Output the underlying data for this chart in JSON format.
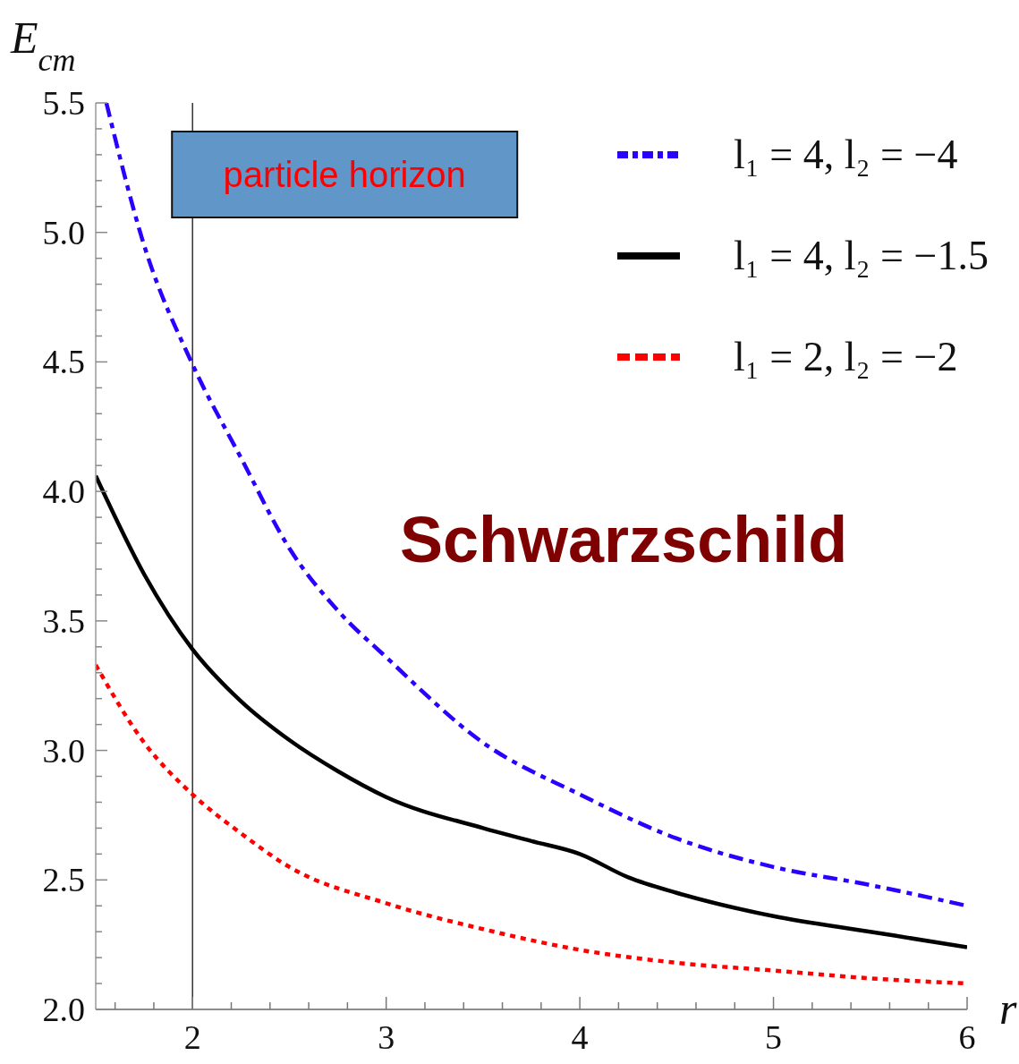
{
  "chart_data": {
    "type": "line",
    "xlabel": "r",
    "ylabel": "E$_{cm}$",
    "xlim": [
      1.5,
      6
    ],
    "ylim": [
      2,
      5.5
    ],
    "xticks": [
      {
        "value": 1.6,
        "label": null
      },
      {
        "value": 1.8,
        "label": null
      },
      2,
      {
        "value": 2.2,
        "label": null
      },
      {
        "value": 2.4,
        "label": null
      },
      {
        "value": 2.6,
        "label": null
      },
      {
        "value": 2.8,
        "label": null
      },
      3,
      {
        "value": 3.2,
        "label": null
      },
      {
        "value": 3.4,
        "label": null
      },
      {
        "value": 3.6,
        "label": null
      },
      {
        "value": 3.8,
        "label": null
      },
      4,
      {
        "value": 4.2,
        "label": null
      },
      {
        "value": 4.4,
        "label": null
      },
      {
        "value": 4.6,
        "label": null
      },
      {
        "value": 4.8,
        "label": null
      },
      5,
      {
        "value": 5.2,
        "label": null
      },
      {
        "value": 5.4,
        "label": null
      },
      {
        "value": 5.6,
        "label": null
      },
      {
        "value": 5.8,
        "label": null
      },
      6
    ],
    "yticks": [
      {
        "value": 2,
        "label": "2.0"
      },
      {
        "value": 2.1,
        "label": null
      },
      {
        "value": 2.2,
        "label": null
      },
      {
        "value": 2.3,
        "label": null
      },
      {
        "value": 2.4,
        "label": null
      },
      2.5,
      {
        "value": 2.6,
        "label": null
      },
      {
        "value": 2.7,
        "label": null
      },
      {
        "value": 2.8,
        "label": null
      },
      {
        "value": 2.9,
        "label": null
      },
      {
        "value": 3,
        "label": "3.0"
      },
      {
        "value": 3.1,
        "label": null
      },
      {
        "value": 3.2,
        "label": null
      },
      {
        "value": 3.3,
        "label": null
      },
      {
        "value": 3.4,
        "label": null
      },
      3.5,
      {
        "value": 3.6,
        "label": null
      },
      {
        "value": 3.7,
        "label": null
      },
      {
        "value": 3.8,
        "label": null
      },
      {
        "value": 3.9,
        "label": null
      },
      {
        "value": 4,
        "label": "4.0"
      },
      {
        "value": 4.1,
        "label": null
      },
      {
        "value": 4.2,
        "label": null
      },
      {
        "value": 4.3,
        "label": null
      },
      {
        "value": 4.4,
        "label": null
      },
      4.5,
      {
        "value": 4.6,
        "label": null
      },
      {
        "value": 4.7,
        "label": null
      },
      {
        "value": 4.8,
        "label": null
      },
      {
        "value": 4.9,
        "label": null
      },
      {
        "value": 5,
        "label": "5.0"
      },
      {
        "value": 5.1,
        "label": null
      },
      {
        "value": 5.2,
        "label": null
      },
      {
        "value": 5.3,
        "label": null
      },
      {
        "value": 5.4,
        "label": null
      },
      5.5
    ],
    "series": [
      {
        "name": "l₁ = 4, l₂ = −4",
        "color": "#2b00ff",
        "line_style": "dashdot",
        "x": [
          1.555,
          1.75,
          2,
          2.25,
          2.5,
          2.75,
          3,
          3.5,
          4,
          4.5,
          5,
          5.5,
          6
        ],
        "values": [
          5.5,
          4.95,
          4.49,
          4.13,
          3.78,
          3.54,
          3.36,
          3.03,
          2.83,
          2.66,
          2.55,
          2.48,
          2.4
        ]
      },
      {
        "name": "l₁ = 4, l₂ = −1.5",
        "color": "#000000",
        "line_style": "solid",
        "x": [
          1.5,
          1.75,
          2,
          2.25,
          2.5,
          2.75,
          3,
          3.5,
          3.75,
          4,
          4.25,
          4.5,
          5,
          5.5,
          6
        ],
        "values": [
          4.06,
          3.68,
          3.39,
          3.19,
          3.04,
          2.92,
          2.82,
          2.7,
          2.65,
          2.6,
          2.51,
          2.45,
          2.36,
          2.3,
          2.24
        ]
      },
      {
        "name": "l₁ = 2, l₂ = −2",
        "color": "#ff0000",
        "line_style": "dotted",
        "x": [
          1.5,
          1.75,
          2,
          2.25,
          2.5,
          3,
          3.5,
          4,
          4.5,
          5,
          5.5,
          6
        ],
        "values": [
          3.33,
          3.03,
          2.83,
          2.68,
          2.55,
          2.41,
          2.31,
          2.23,
          2.18,
          2.15,
          2.12,
          2.1
        ]
      }
    ],
    "ref_lines": [
      {
        "axis": "x",
        "value": 2,
        "label": "particle horizon",
        "color": "#333333"
      }
    ],
    "annotations": [
      "Schwarzschild"
    ],
    "legend": "top right"
  }
}
